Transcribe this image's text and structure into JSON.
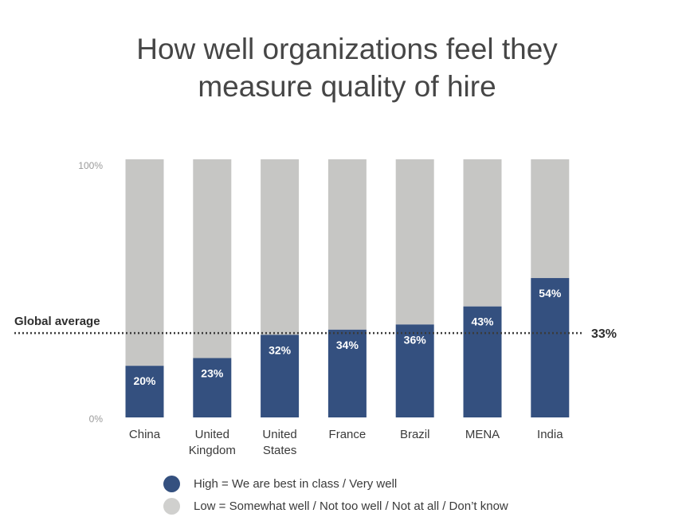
{
  "chart_data": {
    "type": "bar",
    "stacked": true,
    "title": "How well organizations feel they measure quality of hire",
    "title_lines": [
      "How well organizations feel they",
      "measure quality of hire"
    ],
    "categories": [
      [
        "China"
      ],
      [
        "United",
        "Kingdom"
      ],
      [
        "United",
        "States"
      ],
      [
        "France"
      ],
      [
        "Brazil"
      ],
      [
        "MENA"
      ],
      [
        "India"
      ]
    ],
    "series": [
      {
        "name": "High = We are best in class / Very well",
        "values": [
          20,
          23,
          32,
          34,
          36,
          43,
          54
        ],
        "color": "#34507f"
      },
      {
        "name": "Low = Somewhat well / Not too well / Not at all / Don’t know",
        "values": [
          80,
          77,
          68,
          66,
          64,
          57,
          46
        ],
        "color": "#c6c6c4"
      }
    ],
    "data_labels": [
      "20%",
      "23%",
      "32%",
      "34%",
      "36%",
      "43%",
      "54%"
    ],
    "ylim": [
      0,
      100
    ],
    "ytick_labels": {
      "max": "100%",
      "min": "0%"
    },
    "reference_line": {
      "label": "Global average",
      "value": 33,
      "value_label": "33%"
    },
    "xlabel": "",
    "ylabel": "",
    "legend_position": "bottom"
  },
  "legend": {
    "high_label": "High = We are best in class / Very well",
    "low_label": "Low = Somewhat well / Not too well / Not at all / Don’t know",
    "high_color": "#34507f",
    "low_color": "#c6c6c4"
  }
}
